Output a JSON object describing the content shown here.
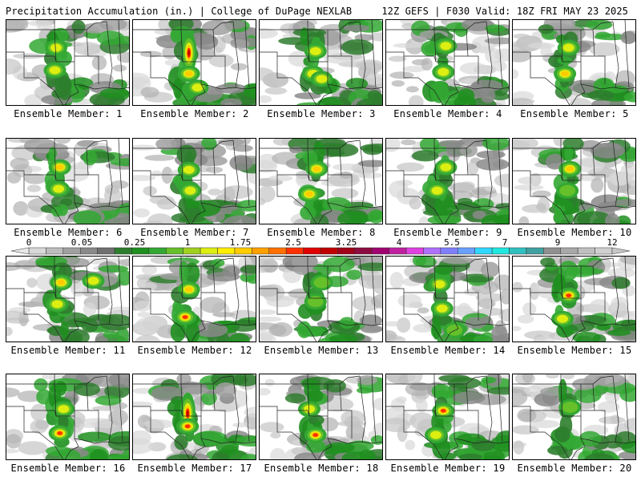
{
  "header": {
    "left": "Precipitation Accumulation (in.) | College of DuPage NEXLAB",
    "right": "12Z GEFS | F030 Valid: 18Z FRI MAY 23 2025"
  },
  "colorbar": {
    "labels": [
      "0",
      "0.05",
      "0.25",
      "1",
      "1.75",
      "2.5",
      "3.25",
      "4",
      "5.5",
      "7",
      "9",
      "12"
    ],
    "colors": [
      "#d8d8d8",
      "#bdbdbd",
      "#a0a0a0",
      "#8a8a8a",
      "#707070",
      "#2e7d2e",
      "#1f8f1f",
      "#33a833",
      "#66c02a",
      "#9fd020",
      "#ddee11",
      "#ffee00",
      "#ffcc00",
      "#ffa000",
      "#ff7000",
      "#ff3000",
      "#e00000",
      "#c00000",
      "#a00018",
      "#8c0c40",
      "#a00070",
      "#c020a0",
      "#e040e0",
      "#b070ff",
      "#8080ff",
      "#6aa0ff",
      "#30d8ff",
      "#20e8e0",
      "#30c0c0",
      "#40a0a0",
      "#909090",
      "#a8a8a8",
      "#c0c0c0",
      "#d0d0d0"
    ]
  },
  "panels": [
    {
      "label": "Ensemble Member: 1",
      "cores": [
        [
          0.4,
          0.32,
          0.55
        ],
        [
          0.39,
          0.58,
          0.45
        ]
      ]
    },
    {
      "label": "Ensemble Member: 2",
      "cores": [
        [
          0.45,
          0.38,
          1.0
        ],
        [
          0.45,
          0.62,
          0.6
        ],
        [
          0.52,
          0.78,
          0.55
        ]
      ]
    },
    {
      "label": "Ensemble Member: 3",
      "cores": [
        [
          0.45,
          0.36,
          0.55
        ],
        [
          0.43,
          0.62,
          0.55
        ],
        [
          0.5,
          0.68,
          0.5
        ]
      ]
    },
    {
      "label": "Ensemble Member: 4",
      "cores": [
        [
          0.48,
          0.3,
          0.55
        ],
        [
          0.46,
          0.6,
          0.45
        ]
      ]
    },
    {
      "label": "Ensemble Member: 5",
      "cores": [
        [
          0.45,
          0.32,
          0.55
        ],
        [
          0.42,
          0.62,
          0.7
        ]
      ]
    },
    {
      "label": "Ensemble Member: 6",
      "cores": [
        [
          0.43,
          0.33,
          0.7
        ],
        [
          0.42,
          0.58,
          0.45
        ]
      ]
    },
    {
      "label": "Ensemble Member: 7",
      "cores": [
        [
          0.45,
          0.36,
          0.55
        ],
        [
          0.46,
          0.6,
          0.5
        ]
      ]
    },
    {
      "label": "Ensemble Member: 8",
      "cores": [
        [
          0.46,
          0.35,
          0.6
        ],
        [
          0.4,
          0.64,
          0.65
        ]
      ]
    },
    {
      "label": "Ensemble Member: 9",
      "cores": [
        [
          0.48,
          0.33,
          0.45
        ],
        [
          0.41,
          0.6,
          0.45
        ]
      ]
    },
    {
      "label": "Ensemble Member: 10",
      "cores": [
        [
          0.46,
          0.35,
          0.6
        ],
        [
          0.44,
          0.6,
          0.35
        ]
      ]
    },
    {
      "label": "Ensemble Member: 11",
      "cores": [
        [
          0.44,
          0.3,
          0.6
        ],
        [
          0.7,
          0.28,
          0.55
        ],
        [
          0.41,
          0.55,
          0.55
        ]
      ]
    },
    {
      "label": "Ensemble Member: 12",
      "cores": [
        [
          0.45,
          0.38,
          0.7
        ],
        [
          0.42,
          0.7,
          0.75
        ]
      ]
    },
    {
      "label": "Ensemble Member: 13",
      "cores": [
        [
          0.5,
          0.3,
          0.4
        ],
        [
          0.45,
          0.52,
          0.3
        ]
      ]
    },
    {
      "label": "Ensemble Member: 14",
      "cores": [
        [
          0.43,
          0.32,
          0.5
        ],
        [
          0.45,
          0.6,
          0.45
        ],
        [
          0.55,
          0.85,
          0.35
        ]
      ]
    },
    {
      "label": "Ensemble Member: 15",
      "cores": [
        [
          0.45,
          0.45,
          0.75
        ],
        [
          0.4,
          0.72,
          0.55
        ]
      ]
    },
    {
      "label": "Ensemble Member: 16",
      "cores": [
        [
          0.46,
          0.4,
          0.55
        ],
        [
          0.43,
          0.68,
          0.75
        ]
      ]
    },
    {
      "label": "Ensemble Member: 17",
      "cores": [
        [
          0.44,
          0.45,
          1.0
        ],
        [
          0.44,
          0.6,
          0.8
        ]
      ]
    },
    {
      "label": "Ensemble Member: 18",
      "cores": [
        [
          0.4,
          0.4,
          0.55
        ],
        [
          0.45,
          0.7,
          0.75
        ]
      ]
    },
    {
      "label": "Ensemble Member: 19",
      "cores": [
        [
          0.46,
          0.42,
          0.85
        ],
        [
          0.4,
          0.7,
          0.55
        ]
      ]
    },
    {
      "label": "Ensemble Member: 20",
      "cores": [
        [
          0.46,
          0.38,
          0.35
        ]
      ]
    }
  ]
}
